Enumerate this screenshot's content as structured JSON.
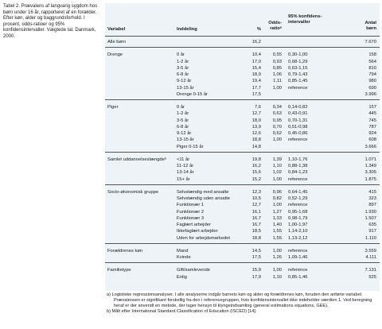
{
  "caption": "Tabel 2. Prævalens af langvarig sygdom hos børn under 16 år, rapporteret af en forælder. Efter køn, alder og baggrundsforhold. I procent, odds-ratioer og 95% konfidensintervaller. Vægtede tal. Danmark, 2000.",
  "table": {
    "columns": [
      "Variabel",
      "Inddeling",
      "%",
      "Odds-ratioᵃ",
      "95% konfidens-intervaller",
      "Antal børn"
    ],
    "sections": [
      {
        "label": "Alle børn",
        "rows": [
          [
            null,
            "16,2",
            null,
            null,
            "7.670"
          ]
        ]
      },
      {
        "label": "Drenge",
        "rows": [
          [
            "0 år",
            "10,4",
            "0,55",
            "0,30-1,00",
            "158"
          ],
          [
            "1-2 år",
            "17,0",
            "0,93",
            "0,68-1,29",
            "564"
          ],
          [
            "3-5 år",
            "15,4",
            "0,85",
            "0,63-1,15",
            "810"
          ],
          [
            "6-8 år",
            "18,9",
            "1,06",
            "0,79-1,43",
            "794"
          ],
          [
            "9-12 år",
            "19,4",
            "1,11",
            "0,85-1,45",
            "980"
          ],
          [
            "13-15 år",
            "17,7",
            "1,00",
            "reference",
            "690"
          ],
          [
            "Drenge 0-15 år",
            "17,5",
            null,
            null,
            "3.996"
          ]
        ]
      },
      {
        "label": "Piger",
        "rows": [
          [
            "0 år",
            "7,6",
            "0,34",
            "0,14-0,82",
            "157"
          ],
          [
            "1-2 år",
            "12,7",
            "0,63",
            "0,43-0,91",
            "445"
          ],
          [
            "3-5 år",
            "18,0",
            "0,95",
            "0,70-1,31",
            "745"
          ],
          [
            "6-8 år",
            "13,9",
            "0,70",
            "0,51-0,98",
            "787"
          ],
          [
            "9-12 år",
            "12,6",
            "0,62",
            "0,45-0,86",
            "924"
          ],
          [
            "13-15 år",
            "18,8",
            "1,00",
            "reference",
            "608"
          ],
          [
            "Piger 0-15 år",
            "14,8",
            null,
            null,
            "3.666"
          ]
        ]
      },
      {
        "label": "Samlet uddannelseslængdeᵇ",
        "rows": [
          [
            "<11 år",
            "19,8",
            "1,39",
            "1,10-1,76",
            "1.071"
          ],
          [
            "11-12 år",
            "16,2",
            "1,10",
            "0,88-1,38",
            "1.349"
          ],
          [
            "13-14 år",
            "15,6",
            "1,02",
            "0,84-1,23",
            "3.305"
          ],
          [
            "15+ år",
            "15,2",
            "1,00",
            "reference",
            "1.875"
          ]
        ]
      },
      {
        "label": "Socio-økonomisk gruppe",
        "rows": [
          [
            "Selvstændig med ansatte",
            "12,3",
            "0,96",
            "0,64-1,45",
            "415"
          ],
          [
            "Selvstændig uden ansatte",
            "10,5",
            "0,82",
            "0,52-1,29",
            "323"
          ],
          [
            "Funktionær 1",
            "12,7",
            "1,00",
            "reference",
            "897"
          ],
          [
            "Funktionær 2",
            "16,1",
            "1,27",
            "0,95-1,68",
            "1.930"
          ],
          [
            "Funktionær 3",
            "16,7",
            "1,33",
            "0,98-1,79",
            "1.507"
          ],
          [
            "Faglært arbejder",
            "16,7",
            "1,40",
            "1,00-1,97",
            "635"
          ],
          [
            "Ikkefaglært arbejder",
            "18,5",
            "1,55",
            "1,14-2,10",
            "917"
          ],
          [
            "Uden for arbejdsmarkedet",
            "18,8",
            "1,55",
            "1,13-2,12",
            "1.110"
          ]
        ]
      },
      {
        "label": "Forældrenes køn",
        "rows": [
          [
            "Mand",
            "14,5",
            "1,00",
            "reference",
            "3.559"
          ],
          [
            "Kvinde",
            "17,5",
            "1,26",
            "1,09-1,46",
            "4.111"
          ]
        ]
      },
      {
        "label": "Familietype",
        "rows": [
          [
            "Gift/samlevende",
            "15,9",
            "1,00",
            "reference",
            "7.131"
          ],
          [
            "Enlig",
            "17,9",
            "1,10",
            "0,85-1,46",
            "525"
          ]
        ]
      }
    ]
  },
  "footnotes": [
    "a) Logistiske regressionsanalyser. I alle analyserne indgår barnets køn og alder og forældrenes køn, foruden den anførte variabel. Prævalensen er signifikant forskellig fra den i referencegruppen, hvis konfidensintervallet ikke indeholder værdien 1. Ved beregning heraf er der anvendt en metode, der tager hensyn til klyngeindsamling (general estimations equations, GEE).",
    "b) Målt efter International Standard Classification of Education (ISCED) [14]."
  ]
}
